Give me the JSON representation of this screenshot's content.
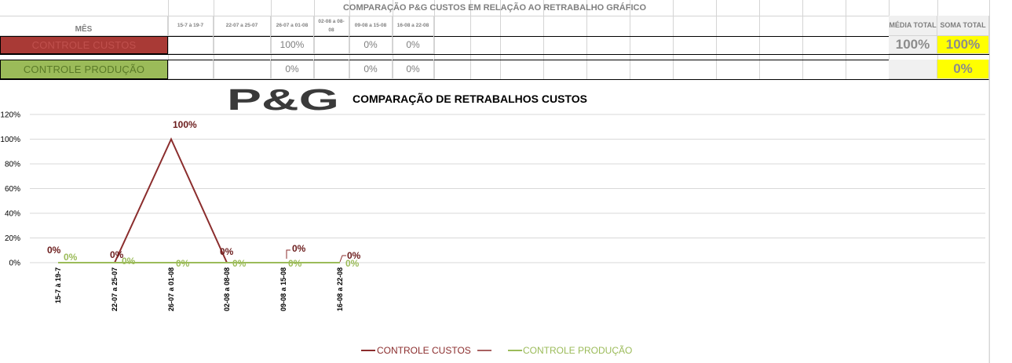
{
  "sheet": {
    "title": "COMPARAÇÃO P&G  CUSTOS EM RELAÇÃO AO RETRABALHO GRÁFICO",
    "month_header": "MÊS",
    "period_headers": [
      "15-7 à 19-7",
      "22-07 a 25-07",
      "26-07 a 01-08",
      "02-08 a 08-08",
      "09-08 a 15-08",
      "16-08 a 22-08"
    ],
    "media_total_header": "MÉDIA TOTAL",
    "soma_total_header": "SOMA TOTAL",
    "rows": [
      {
        "label": "CONTROLE CUSTOS",
        "values": [
          "",
          "",
          "100%",
          "",
          "0%",
          "0%"
        ],
        "media_total": "100%",
        "soma_total": "100%"
      },
      {
        "label": "CONTROLE PRODUÇÃO",
        "values": [
          "",
          "",
          "0%",
          "",
          "0%",
          "0%"
        ],
        "media_total": "",
        "soma_total": "0%"
      }
    ]
  },
  "logo": {
    "text": "P&G"
  },
  "chart_data": {
    "type": "line",
    "title": "COMPARAÇÃO DE RETRABALHOS  CUSTOS",
    "categories": [
      "15-7 à 19-7",
      "22-07 a 25-07",
      "26-07 a 01-08",
      "02-08 a 08-08",
      "09-08 a 15-08",
      "16-08 a 22-08"
    ],
    "series": [
      {
        "name": "CONTROLE CUSTOS",
        "values": [
          0,
          0,
          1.0,
          0,
          0,
          0
        ],
        "labels": [
          "0%",
          "0%",
          "100%",
          "0%",
          "0%",
          "0%"
        ],
        "color": "#8b2d2d"
      },
      {
        "name": "CONTROLE PRODUÇÃO",
        "values": [
          0,
          0,
          0,
          0,
          0,
          0
        ],
        "labels": [
          "0%",
          "0%",
          "0%",
          "0%",
          "0%",
          "0%"
        ],
        "color": "#9bbb59"
      }
    ],
    "ylim": [
      0,
      1.2
    ],
    "yticks": [
      "0%",
      "20%",
      "40%",
      "60%",
      "80%",
      "100%",
      "120%"
    ],
    "grid": true,
    "legend_position": "bottom"
  },
  "colors": {
    "custos_fill": "#a93a36",
    "custos_text": "#c0504d",
    "producao_fill": "#9bbb59",
    "producao_text": "#5a7a28",
    "highlight_yellow": "#ffff00",
    "header_gray": "#f0f0f0"
  }
}
